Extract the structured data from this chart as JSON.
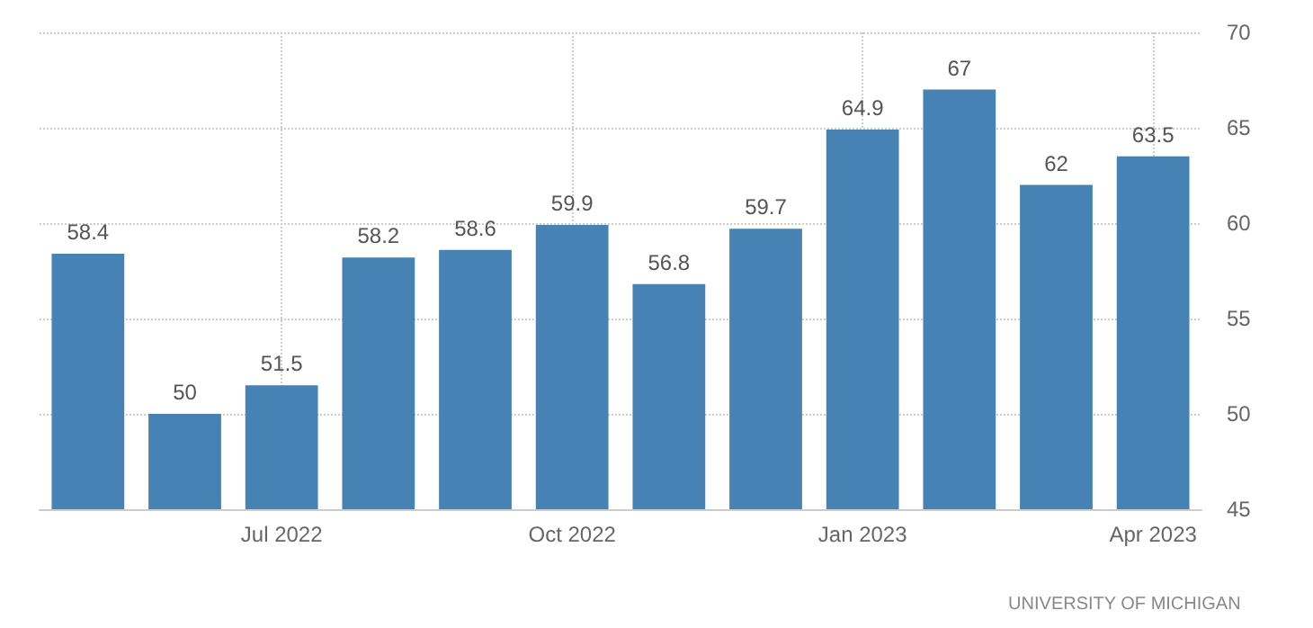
{
  "chart_data": {
    "type": "bar",
    "categories": [
      null,
      null,
      "Jul 2022",
      null,
      null,
      "Oct 2022",
      null,
      null,
      "Jan 2023",
      null,
      null,
      "Apr 2023"
    ],
    "values": [
      58.4,
      50,
      51.5,
      58.2,
      58.6,
      59.9,
      56.8,
      59.7,
      64.9,
      67,
      62,
      63.5
    ],
    "color": "#4682b4",
    "ylim": [
      45,
      70
    ],
    "yticks": [
      45,
      50,
      55,
      60,
      65,
      70
    ],
    "grid": true,
    "data_labels": true,
    "annotations": [
      "UNIVERSITY OF MICHIGAN"
    ]
  }
}
